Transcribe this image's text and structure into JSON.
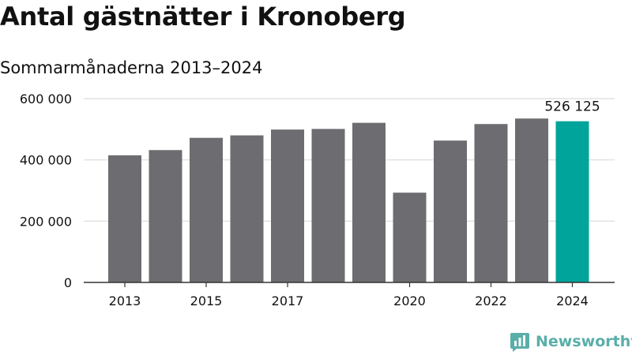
{
  "title": "Antal gästnätter i Kronoberg",
  "subtitle": "Sommarmånaderna 2013–2024",
  "brand": {
    "name": "Newsworthy",
    "color": "#5aaea9"
  },
  "colors": {
    "bar": "#6d6c70",
    "highlight": "#00a49a",
    "grid": "#dcdcdc",
    "axis": "#333333",
    "text": "#111111"
  },
  "chart_data": {
    "type": "bar",
    "title": "Antal gästnätter i Kronoberg",
    "subtitle": "Sommarmånaderna 2013–2024",
    "xlabel": "",
    "ylabel": "",
    "categories": [
      "2013",
      "2014",
      "2015",
      "2016",
      "2017",
      "2018",
      "2019",
      "2020",
      "2021",
      "2022",
      "2023",
      "2024"
    ],
    "values": [
      415000,
      432000,
      472000,
      480000,
      499000,
      501000,
      521000,
      293000,
      463000,
      517000,
      535000,
      526125
    ],
    "ylim": [
      0,
      600000
    ],
    "yticks": [
      0,
      200000,
      400000,
      600000
    ],
    "ytick_labels": [
      "0",
      "200 000",
      "400 000",
      "600 000"
    ],
    "xtick_labels_shown": [
      "2013",
      "2015",
      "2017",
      "2020",
      "2022",
      "2024"
    ],
    "highlight_index": 11,
    "annotation": "526 125",
    "grid": true
  }
}
